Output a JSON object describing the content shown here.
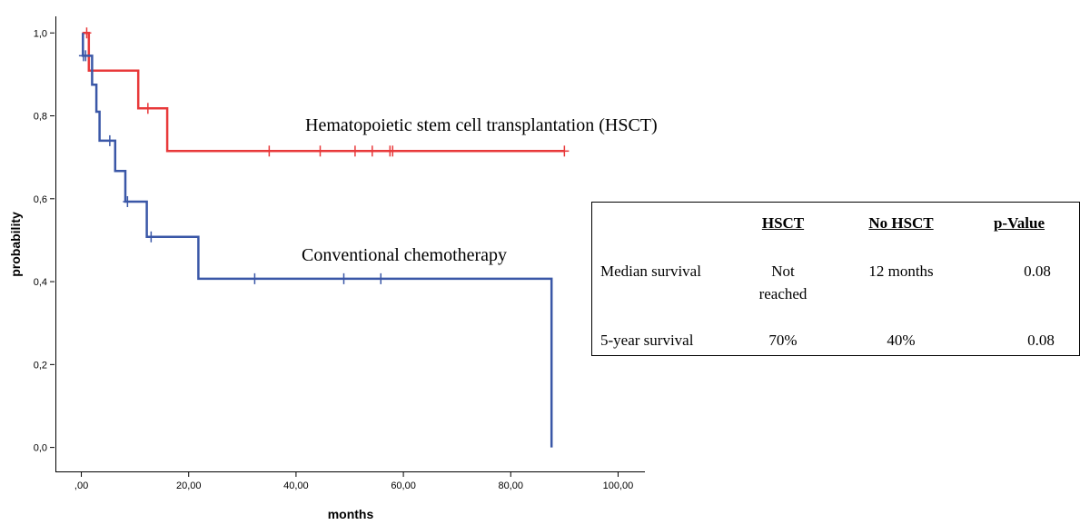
{
  "chart_data": {
    "type": "line",
    "subtype": "kaplan-meier survival curve",
    "xlabel": "months",
    "ylabel": "probability",
    "xlim": [
      -5,
      105
    ],
    "ylim": [
      -0.06,
      1.04
    ],
    "x_ticks": [
      0,
      20,
      40,
      60,
      80,
      100
    ],
    "x_tick_labels": [
      ",00",
      "20,00",
      "40,00",
      "60,00",
      "80,00",
      "100,00"
    ],
    "y_ticks": [
      0,
      0.2,
      0.4,
      0.6,
      0.8,
      1.0
    ],
    "y_tick_labels": [
      "0,0",
      "0,2",
      "0,4",
      "0,6",
      "0,8",
      "1,0"
    ],
    "grid": false,
    "series": [
      {
        "name": "Hematopoietic stem cell transplantation (HSCT)",
        "color": "#e8393a",
        "steps": [
          [
            0.3,
            1.0
          ],
          [
            1.4,
            1.0
          ],
          [
            1.4,
            0.909
          ],
          [
            10.6,
            0.909
          ],
          [
            10.6,
            0.818
          ],
          [
            16.0,
            0.818
          ],
          [
            16.0,
            0.715
          ],
          [
            90.0,
            0.715
          ]
        ],
        "censor_x": [
          1.0,
          12.4,
          35.0,
          44.5,
          51.0,
          54.2,
          57.5,
          58.0,
          90.0
        ]
      },
      {
        "name": "Conventional chemotherapy",
        "color": "#3a57a7",
        "steps": [
          [
            0.3,
            1.0
          ],
          [
            0.3,
            0.945
          ],
          [
            2.0,
            0.945
          ],
          [
            2.0,
            0.875
          ],
          [
            2.8,
            0.875
          ],
          [
            2.8,
            0.81
          ],
          [
            3.4,
            0.81
          ],
          [
            3.4,
            0.74
          ],
          [
            6.3,
            0.74
          ],
          [
            6.3,
            0.667
          ],
          [
            8.2,
            0.667
          ],
          [
            8.2,
            0.593
          ],
          [
            12.2,
            0.593
          ],
          [
            12.2,
            0.508
          ],
          [
            21.8,
            0.508
          ],
          [
            21.8,
            0.407
          ],
          [
            87.6,
            0.407
          ],
          [
            87.6,
            0.0
          ]
        ],
        "censor_x": [
          0.4,
          0.8,
          5.3,
          8.6,
          13.0,
          32.3,
          48.9,
          55.8
        ]
      }
    ],
    "annotations": [
      "Hematopoietic stem cell transplantation (HSCT)",
      "Conventional chemotherapy"
    ]
  },
  "table": {
    "headers": [
      "HSCT",
      "No HSCT",
      "p-Value"
    ],
    "rows": [
      {
        "label": "Median survival",
        "hsct_line1": "Not",
        "hsct_line2": "reached",
        "no_hsct": "12 months",
        "p_value": "0.08"
      },
      {
        "label": "5-year survival",
        "hsct": "70%",
        "no_hsct": "40%",
        "p_value": "0.08"
      }
    ]
  }
}
